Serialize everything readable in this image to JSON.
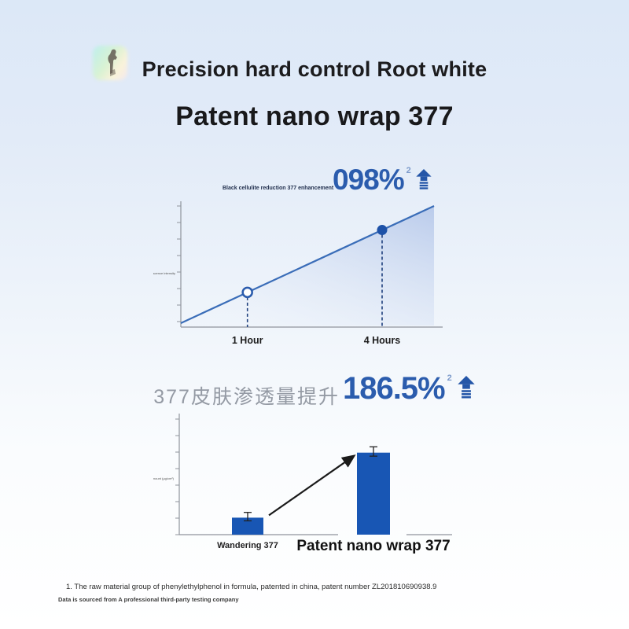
{
  "header": {
    "title_line1": "Precision hard control Root white",
    "title_line2": "Patent nano wrap 377"
  },
  "accent": {
    "headline_blue": "#2b5cad",
    "bar_blue": "#1856b4",
    "line_blue": "#3a6db8",
    "arrow_black": "#1a1a1a"
  },
  "chart_data": [
    {
      "type": "line",
      "title": "Black cellulite reduction 377 enhancement",
      "headline_value": "098%",
      "headline_ref": "2",
      "ylabel": "Average fluorescence intensity",
      "x_tick_labels": [
        "1 Hour",
        "4 Hours"
      ],
      "points": [
        {
          "label": "1 Hour",
          "rel_x": 0.263,
          "rel_y": 0.27,
          "marker": "open"
        },
        {
          "label": "4 Hours",
          "rel_x": 0.795,
          "rel_y": 0.8,
          "marker": "filled"
        }
      ],
      "trend": "straight line rising from axis origin to top right, shaded area underneath",
      "y_ticks": 8,
      "grid": false,
      "line_color": "#3a6db8",
      "area_top_color": "#b7c9ea",
      "area_bottom_color": "#edf2fb",
      "stem_color": "#1e3f7d",
      "marker_fill": "#1d52a8",
      "axis_color": "#8f949c"
    },
    {
      "type": "bar",
      "title": "377皮肤渗透量提升",
      "headline_value": "186.5%",
      "headline_ref": "2",
      "ylabel": "Skin penetration amount (μg/cm²)",
      "categories": [
        "Wandering 377",
        "Patent nano wrap 377"
      ],
      "values_rel": [
        0.145,
        0.7
      ],
      "error_rel": [
        0.045,
        0.05
      ],
      "y_ticks": 8,
      "grid": false,
      "bar_color": "#1856b4",
      "axis_color": "#8f949c",
      "annotation": "black arrow from small bar pointing to top of large bar"
    }
  ],
  "footnotes": {
    "line1": "1. The raw material group of phenylethylphenol in formula, patented in china, patent number ZL201810690938.9",
    "line2": "Data is sourced from A professional third-party testing company"
  }
}
